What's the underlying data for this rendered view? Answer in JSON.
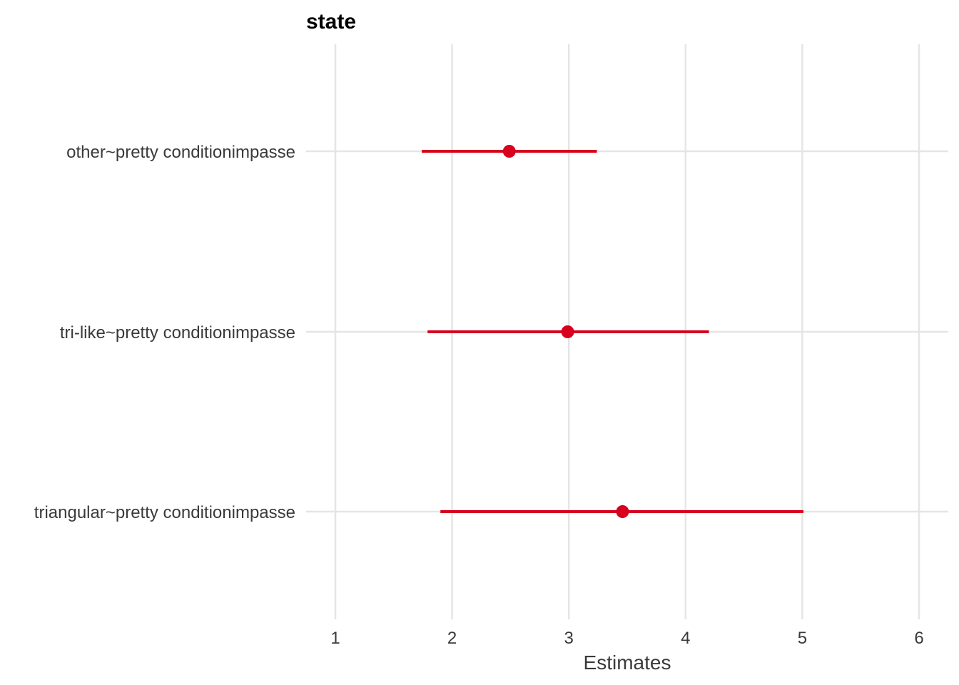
{
  "chart_data": {
    "type": "scatter",
    "title": "state",
    "xlabel": "Estimates",
    "ylabel": "",
    "xlim": [
      1,
      6
    ],
    "xticks": [
      1,
      2,
      3,
      4,
      5,
      6
    ],
    "xtick_labels": [
      "1",
      "2",
      "3",
      "4",
      "5",
      "6"
    ],
    "grid": true,
    "categories": [
      "other~pretty conditionimpasse",
      "tri-like~pretty conditionimpasse",
      "triangular~pretty conditionimpasse"
    ],
    "series": [
      {
        "estimates": [
          2.49,
          2.99,
          3.46
        ],
        "ci_low": [
          1.74,
          1.79,
          1.9
        ],
        "ci_high": [
          3.24,
          4.2,
          5.01
        ]
      }
    ],
    "color": "#d7001f"
  }
}
